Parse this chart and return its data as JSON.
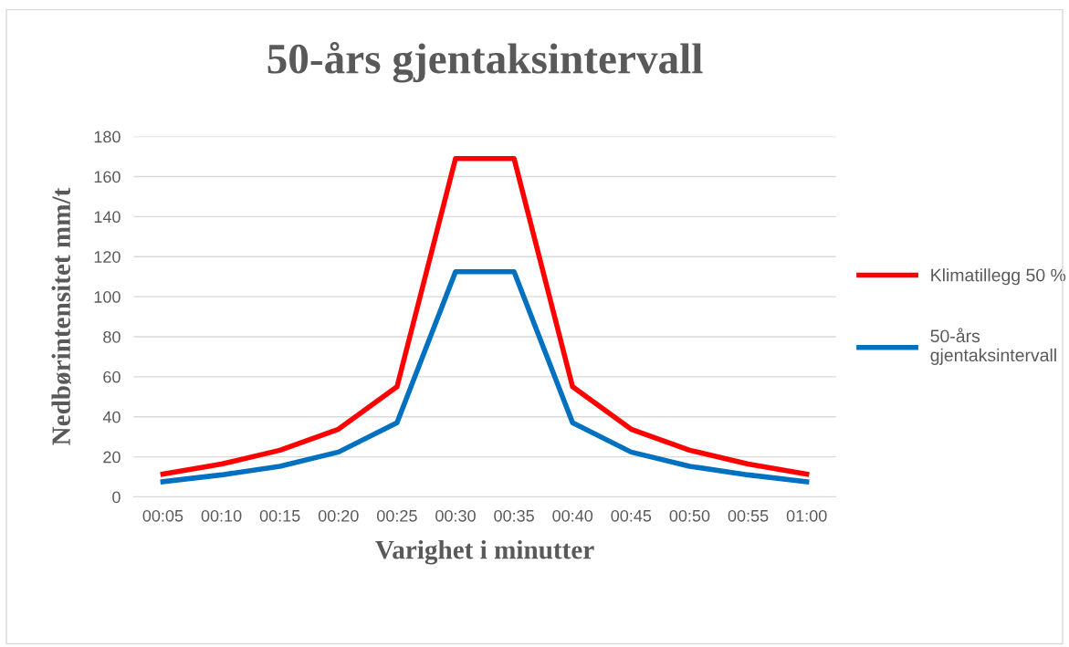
{
  "chart_data": {
    "type": "line",
    "title": "50-års gjentaksintervall",
    "xlabel": "Varighet i minutter",
    "ylabel": "Nedbørintensitet mm/t",
    "categories": [
      "00:05",
      "00:10",
      "00:15",
      "00:20",
      "00:25",
      "00:30",
      "00:35",
      "00:40",
      "00:45",
      "00:50",
      "00:55",
      "01:00"
    ],
    "series": [
      {
        "name": "Klimatillegg 50 %",
        "color": "#ff0000",
        "values": [
          11.4,
          16.4,
          23.3,
          33.8,
          55,
          169,
          169,
          55,
          33.8,
          23.3,
          16.4,
          11.4
        ]
      },
      {
        "name": "50-års gjentaksintervall",
        "color": "#0070c0",
        "values": [
          7.6,
          11,
          15.3,
          22.4,
          37,
          112.5,
          112.5,
          37,
          22.4,
          15.3,
          11,
          7.6
        ]
      }
    ],
    "ylim": [
      0,
      180
    ],
    "yticks": [
      0,
      20,
      40,
      60,
      80,
      100,
      120,
      140,
      160,
      180
    ],
    "grid": "y",
    "legend": "right",
    "marker": "none",
    "line_style": "solid"
  }
}
